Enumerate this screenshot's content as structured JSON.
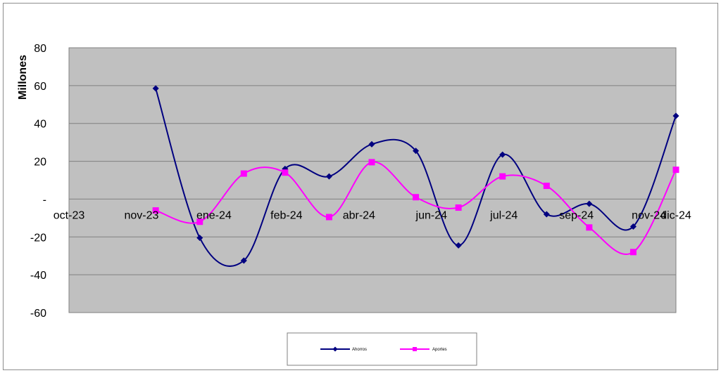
{
  "chart_data": {
    "type": "line",
    "smooth": true,
    "ylabel": "Millones",
    "xlabel": "",
    "title": "",
    "ylim": [
      -60,
      80
    ],
    "yticks": [
      80,
      60,
      40,
      20,
      0,
      -20,
      -40,
      -60
    ],
    "ytick_labels": [
      "80",
      "60",
      "40",
      "20",
      "-",
      "-20",
      "-40",
      "-60"
    ],
    "xlim": [
      "2023-10-01",
      "2024-12-01"
    ],
    "xticks": [
      "2023-10-01",
      "2023-11-21",
      "2024-01-11",
      "2024-03-02",
      "2024-04-22",
      "2024-06-12",
      "2024-08-02",
      "2024-09-22",
      "2024-11-12",
      "2024-12-01"
    ],
    "xtick_labels": [
      "oct-23",
      "nov-23",
      "ene-24",
      "feb-24",
      "abr-24",
      "jun-24",
      "jul-24",
      "sep-24",
      "nov-24",
      "dic-24"
    ],
    "x": [
      "2023-12-01",
      "2024-01-01",
      "2024-02-01",
      "2024-03-01",
      "2024-04-01",
      "2024-05-01",
      "2024-06-01",
      "2024-07-01",
      "2024-08-01",
      "2024-09-01",
      "2024-10-01",
      "2024-11-01",
      "2024-12-01"
    ],
    "grid": true,
    "legend_position": "bottom",
    "background_color": "#c0c0c0",
    "series": [
      {
        "name": "Ahorros",
        "color": "#000080",
        "marker": "diamond",
        "values": [
          58.5,
          -20.5,
          -32.5,
          16,
          12,
          29,
          25.5,
          -24.5,
          23.5,
          -8,
          -2.5,
          -14.5,
          44
        ]
      },
      {
        "name": "Aportes",
        "color": "#ff00ff",
        "marker": "square",
        "values": [
          -6,
          -12,
          13.5,
          14,
          -9.5,
          19.5,
          1,
          -4.5,
          12,
          7,
          -15,
          -28,
          15.5
        ]
      }
    ]
  }
}
